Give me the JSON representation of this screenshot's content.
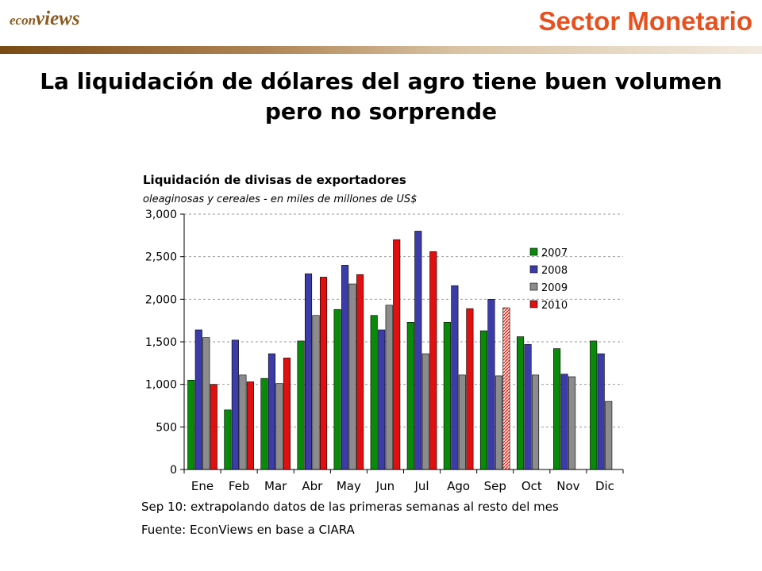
{
  "header": {
    "logo_prefix": "econ",
    "logo_suffix": "views",
    "section_title": "Sector Monetario",
    "brand_color": "#e8501e"
  },
  "headline": "La liquidación de dólares del agro tiene buen volumen pero no sorprende",
  "chart_data": {
    "type": "bar",
    "title": "Liquidación de divisas de exportadores",
    "subtitle": "oleaginosas y cereales - en miles de millones de US$",
    "categories": [
      "Ene",
      "Feb",
      "Mar",
      "Abr",
      "May",
      "Jun",
      "Jul",
      "Ago",
      "Sep",
      "Oct",
      "Nov",
      "Dic"
    ],
    "ylim": [
      0,
      3000
    ],
    "yticks": [
      0,
      500,
      1000,
      1500,
      2000,
      2500,
      3000
    ],
    "ytick_labels": [
      "0",
      "500",
      "1,000",
      "1,500",
      "2,000",
      "2,500",
      "3,000"
    ],
    "grid": true,
    "legend_position": "right",
    "series": [
      {
        "name": "2007",
        "color": "#0a8a0a",
        "values": [
          1050,
          700,
          1070,
          1510,
          1880,
          1810,
          1730,
          1730,
          1630,
          1560,
          1420,
          1510
        ]
      },
      {
        "name": "2008",
        "color": "#3c3ca8",
        "values": [
          1640,
          1520,
          1360,
          2300,
          2400,
          1640,
          2800,
          2160,
          2000,
          1470,
          1120,
          1360
        ]
      },
      {
        "name": "2009",
        "color": "#8c8c8c",
        "values": [
          1550,
          1110,
          1010,
          1810,
          2180,
          1930,
          1360,
          1110,
          1100,
          1110,
          1090,
          800
        ]
      },
      {
        "name": "2010",
        "color": "#e01010",
        "values": [
          1000,
          1030,
          1310,
          2260,
          2290,
          2700,
          2560,
          1890,
          1900,
          null,
          null,
          null
        ]
      }
    ],
    "extrapolated_point": {
      "series": "2010",
      "category": "Sep"
    }
  },
  "notes": {
    "extrapolation": "Sep 10: extrapolando datos de las primeras semanas al resto del mes",
    "source": "Fuente: EconViews en base a CIARA"
  }
}
